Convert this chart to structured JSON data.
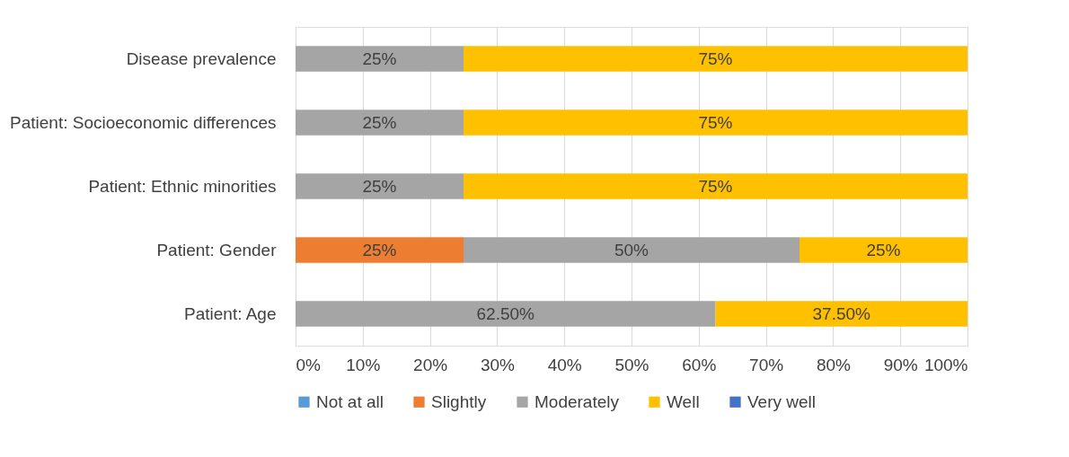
{
  "chart_data": {
    "type": "bar",
    "orientation": "horizontal",
    "stacked": true,
    "categories": [
      "Disease prevalence",
      "Patient: Socioeconomic differences",
      "Patient: Ethnic minorities",
      "Patient: Gender",
      "Patient: Age"
    ],
    "series": [
      {
        "name": "Not at all",
        "color": "#5b9bd5",
        "values": [
          0,
          0,
          0,
          0,
          0
        ],
        "value_labels": [
          null,
          null,
          null,
          null,
          null
        ]
      },
      {
        "name": "Slightly",
        "color": "#ed7d31",
        "values": [
          0,
          0,
          0,
          25,
          0
        ],
        "value_labels": [
          null,
          null,
          null,
          "25%",
          null
        ]
      },
      {
        "name": "Moderately",
        "color": "#a5a5a5",
        "values": [
          25,
          25,
          25,
          50,
          62.5
        ],
        "value_labels": [
          "25%",
          "25%",
          "25%",
          "50%",
          "62.50%"
        ]
      },
      {
        "name": "Well",
        "color": "#ffc000",
        "values": [
          75,
          75,
          75,
          25,
          37.5
        ],
        "value_labels": [
          "75%",
          "75%",
          "75%",
          "25%",
          "37.50%"
        ]
      },
      {
        "name": "Very well",
        "color": "#4472c4",
        "values": [
          0,
          0,
          0,
          0,
          0
        ],
        "value_labels": [
          null,
          null,
          null,
          null,
          null
        ]
      }
    ],
    "xlim": [
      0,
      100
    ],
    "xticks": [
      {
        "value": 0,
        "label": "0%"
      },
      {
        "value": 10,
        "label": "10%"
      },
      {
        "value": 20,
        "label": "20%"
      },
      {
        "value": 30,
        "label": "30%"
      },
      {
        "value": 40,
        "label": "40%"
      },
      {
        "value": 50,
        "label": "50%"
      },
      {
        "value": 60,
        "label": "60%"
      },
      {
        "value": 70,
        "label": "70%"
      },
      {
        "value": 80,
        "label": "80%"
      },
      {
        "value": 90,
        "label": "90%"
      },
      {
        "value": 100,
        "label": "100%"
      }
    ],
    "grid": "x",
    "legend": "bottom"
  }
}
